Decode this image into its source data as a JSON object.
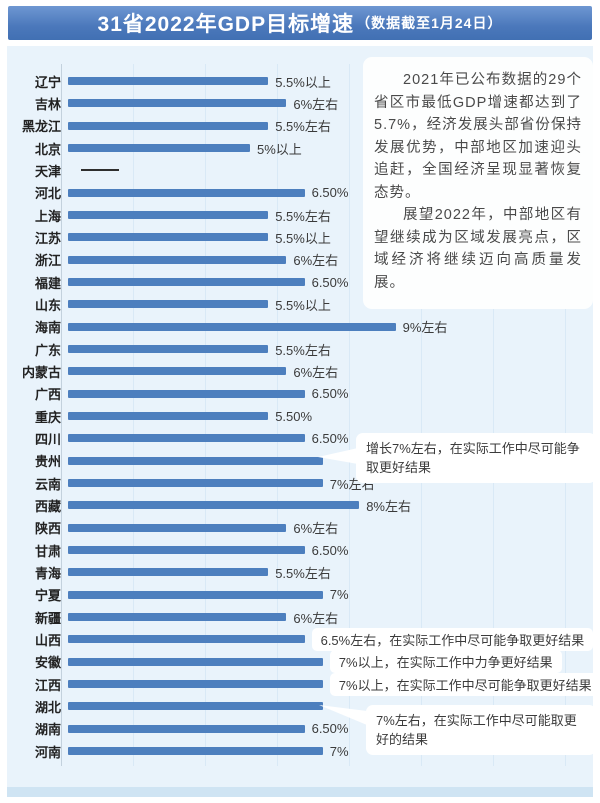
{
  "title": {
    "main": "31省2022年GDP目标增速",
    "sub": "（数据截至1月24日）"
  },
  "info_panel": {
    "paragraphs": [
      "2021年已公布数据的29个省区市最低GDP增速都达到了5.7%，经济发展头部省份保持发展优势，中部地区加速迎头追赶，全国经济呈现显著恢复态势。",
      "展望2022年，中部地区有望继续成为区域发展亮点，区域经济将继续迈向高质量发展。"
    ]
  },
  "callouts": {
    "guizhou": "增长7%左右，在实际工作中尽可能争取更好结果",
    "hubei": "7%左右，在实际工作中尽可能取更好的结果"
  },
  "colors": {
    "bar": "#4d7fbe",
    "banner": "#4b78bb",
    "chart_background": "#e9f3fb"
  },
  "chart_data": {
    "type": "bar",
    "orientation": "horizontal",
    "title": "31省2022年GDP目标增速（数据截至1月24日）",
    "value_unit": "percent",
    "xlim": [
      0,
      9.5
    ],
    "grid": "vertical-faint",
    "legend": "none",
    "rows": [
      {
        "province": "辽宁",
        "value": 5.5,
        "label": "5.5%以上",
        "style": "plain"
      },
      {
        "province": "吉林",
        "value": 6,
        "label": "6%左右",
        "style": "plain"
      },
      {
        "province": "黑龙江",
        "value": 5.5,
        "label": "5.5%左右",
        "style": "plain"
      },
      {
        "province": "北京",
        "value": 5,
        "label": "5%以上",
        "style": "plain"
      },
      {
        "province": "天津",
        "value": null,
        "label": "",
        "style": "dash"
      },
      {
        "province": "河北",
        "value": 6.5,
        "label": "6.50%",
        "style": "plain"
      },
      {
        "province": "上海",
        "value": 5.5,
        "label": "5.5%左右",
        "style": "plain"
      },
      {
        "province": "江苏",
        "value": 5.5,
        "label": "5.5%以上",
        "style": "plain"
      },
      {
        "province": "浙江",
        "value": 6,
        "label": "6%左右",
        "style": "plain"
      },
      {
        "province": "福建",
        "value": 6.5,
        "label": "6.50%",
        "style": "plain"
      },
      {
        "province": "山东",
        "value": 5.5,
        "label": "5.5%以上",
        "style": "plain"
      },
      {
        "province": "海南",
        "value": 9,
        "label": "9%左右",
        "style": "plain"
      },
      {
        "province": "广东",
        "value": 5.5,
        "label": "5.5%左右",
        "style": "plain"
      },
      {
        "province": "内蒙古",
        "value": 6,
        "label": "6%左右",
        "style": "plain"
      },
      {
        "province": "广西",
        "value": 6.5,
        "label": "6.50%",
        "style": "plain"
      },
      {
        "province": "重庆",
        "value": 5.5,
        "label": "5.50%",
        "style": "plain"
      },
      {
        "province": "四川",
        "value": 6.5,
        "label": "6.50%",
        "style": "plain"
      },
      {
        "province": "贵州",
        "value": 7,
        "label": "",
        "style": "callout"
      },
      {
        "province": "云南",
        "value": 7,
        "label": "7%左右",
        "style": "plain"
      },
      {
        "province": "西藏",
        "value": 8,
        "label": "8%左右",
        "style": "plain"
      },
      {
        "province": "陕西",
        "value": 6,
        "label": "6%左右",
        "style": "plain"
      },
      {
        "province": "甘肃",
        "value": 6.5,
        "label": "6.50%",
        "style": "plain"
      },
      {
        "province": "青海",
        "value": 5.5,
        "label": "5.5%左右",
        "style": "plain"
      },
      {
        "province": "宁夏",
        "value": 7,
        "label": "7%",
        "style": "plain"
      },
      {
        "province": "新疆",
        "value": 6,
        "label": "6%左右",
        "style": "plain"
      },
      {
        "province": "山西",
        "value": 6.5,
        "label": "6.5%左右，在实际工作中尽可能争取更好结果",
        "style": "bubble"
      },
      {
        "province": "安徽",
        "value": 7,
        "label": "7%以上，在实际工作中力争更好结果",
        "style": "bubble"
      },
      {
        "province": "江西",
        "value": 7,
        "label": "7%以上，在实际工作中尽可能争取更好结果",
        "style": "bubble"
      },
      {
        "province": "湖北",
        "value": 7,
        "label": "",
        "style": "callout"
      },
      {
        "province": "湖南",
        "value": 6.5,
        "label": "6.50%",
        "style": "plain"
      },
      {
        "province": "河南",
        "value": 7,
        "label": "7%",
        "style": "plain"
      }
    ]
  }
}
